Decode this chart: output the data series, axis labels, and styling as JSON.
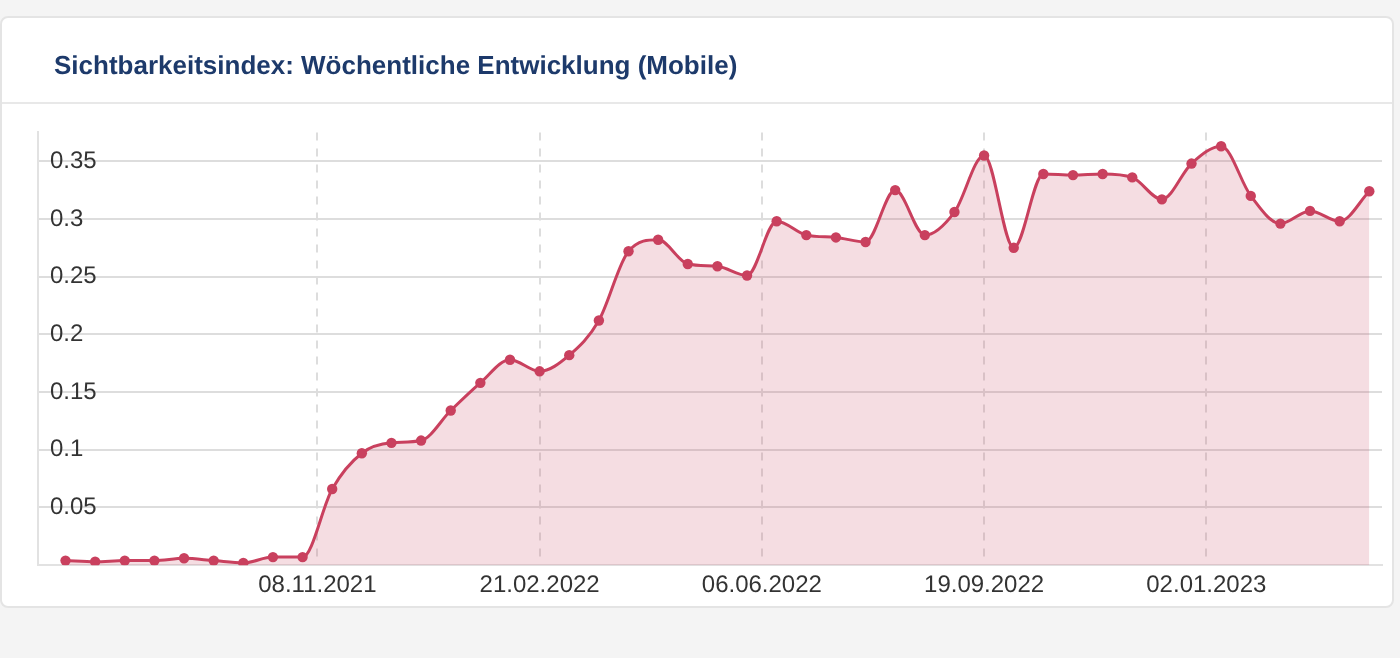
{
  "chart_data": {
    "type": "area",
    "title": "Sichtbarkeitsindex: Wöchentliche Entwicklung (Mobile)",
    "x": [
      "2021-07-12",
      "2021-07-26",
      "2021-08-09",
      "2021-08-23",
      "2021-09-06",
      "2021-09-20",
      "2021-10-04",
      "2021-10-18",
      "2021-11-01",
      "2021-11-15",
      "2021-11-29",
      "2021-12-13",
      "2021-12-27",
      "2022-01-10",
      "2022-01-24",
      "2022-02-07",
      "2022-02-21",
      "2022-03-07",
      "2022-03-21",
      "2022-04-04",
      "2022-04-18",
      "2022-05-02",
      "2022-05-16",
      "2022-05-30",
      "2022-06-13",
      "2022-06-27",
      "2022-07-11",
      "2022-07-25",
      "2022-08-08",
      "2022-08-22",
      "2022-09-05",
      "2022-09-19",
      "2022-10-03",
      "2022-10-17",
      "2022-10-31",
      "2022-11-14",
      "2022-11-28",
      "2022-12-12",
      "2022-12-26",
      "2023-01-09",
      "2023-01-23",
      "2023-02-06",
      "2023-02-20",
      "2023-03-06",
      "2023-03-20"
    ],
    "series": [
      {
        "color": "#c9405e",
        "values": [
          0.004,
          0.003,
          0.004,
          0.004,
          0.006,
          0.004,
          0.002,
          0.007,
          0.007,
          0.066,
          0.097,
          0.106,
          0.108,
          0.134,
          0.158,
          0.178,
          0.168,
          0.182,
          0.212,
          0.272,
          0.282,
          0.261,
          0.259,
          0.251,
          0.298,
          0.286,
          0.284,
          0.28,
          0.325,
          0.286,
          0.306,
          0.355,
          0.275,
          0.339,
          0.338,
          0.339,
          0.336,
          0.317,
          0.348,
          0.363,
          0.32,
          0.296,
          0.307,
          0.298,
          0.324
        ]
      }
    ],
    "xlim": [
      "2021-06-29",
      "2023-03-26"
    ],
    "xticks": [
      {
        "value": "2021-11-08",
        "label": "08.11.2021"
      },
      {
        "value": "2022-02-21",
        "label": "21.02.2022"
      },
      {
        "value": "2022-06-06",
        "label": "06.06.2022"
      },
      {
        "value": "2022-09-19",
        "label": "19.09.2022"
      },
      {
        "value": "2023-01-02",
        "label": "02.01.2023"
      }
    ],
    "ylim": [
      0,
      0.375
    ],
    "yticks": [
      0.05,
      0.1,
      0.15,
      0.2,
      0.25,
      0.3,
      0.35
    ],
    "grid": true,
    "legend": false,
    "marker": "circle",
    "line_style": "solid"
  }
}
